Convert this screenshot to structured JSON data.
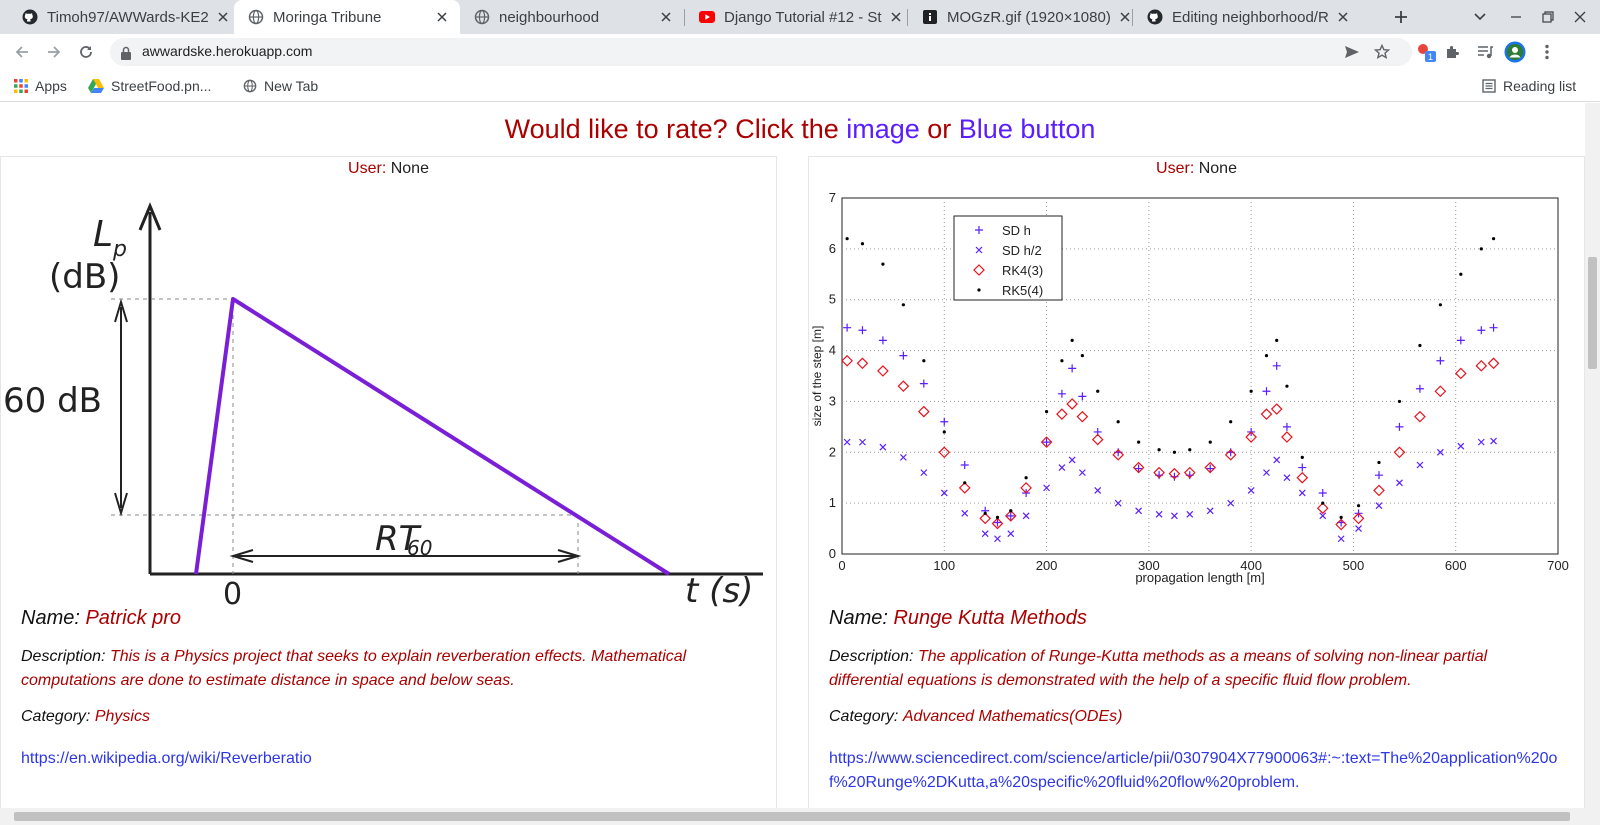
{
  "browser": {
    "tabs": [
      {
        "title": "Timoh97/AWWards-KE2",
        "icon": "github-icon"
      },
      {
        "title": "Moringa Tribune",
        "icon": "globe-icon",
        "active": true
      },
      {
        "title": "neighbourhood",
        "icon": "globe-icon"
      },
      {
        "title": "Django Tutorial #12 - St",
        "icon": "youtube-icon"
      },
      {
        "title": "MOGzR.gif (1920×1080)",
        "icon": "info-icon"
      },
      {
        "title": "Editing neighborhood/R",
        "icon": "github-icon"
      }
    ],
    "url": "awwardske.herokuapp.com",
    "extension_badge": "1",
    "bookmarks": [
      {
        "label": "Apps",
        "icon": "apps-grid-icon"
      },
      {
        "label": "StreetFood.pn...",
        "icon": "google-drive-icon"
      },
      {
        "label": "New Tab",
        "icon": "globe-icon"
      }
    ],
    "reading_list_label": "Reading list"
  },
  "page": {
    "headline": {
      "text_before": "Would like to rate? Click the ",
      "link_image": "image",
      "text_mid": " or ",
      "link_button": "Blue button"
    },
    "user_label": "User:",
    "name_label": "Name:",
    "description_label": "Description:",
    "category_label": "Category:",
    "projects": [
      {
        "user": "None",
        "name": "Patrick pro",
        "description": "This is a Physics project that seeks to explain reverberation effects. Mathematical computations are done to estimate distance in space and below seas.",
        "category": "Physics",
        "link": "https://en.wikipedia.org/wiki/Reverberatio",
        "image_text": {
          "ylabel_top": "L",
          "ylabel_sub": "p",
          "ylabel_unit": "(dB)",
          "level": "60 dB",
          "origin": "0",
          "rt_label": "RT",
          "rt_sub": "60",
          "x_label": "t (s)"
        }
      },
      {
        "user": "None",
        "name": "Runge Kutta Methods",
        "description": "The application of Runge-Kutta methods as a means of solving non-linear partial differential equations is demonstrated with the help of a specific fluid flow problem.",
        "category": "Advanced Mathematics(ODEs)",
        "link": "https://www.sciencedirect.com/science/article/pii/0307904X77900063#:~:text=The%20application%20of%20Runge%2DKutta,a%20specific%20fluid%20flow%20problem."
      }
    ]
  },
  "chart_data": {
    "type": "scatter",
    "xlabel": "propagation length [m]",
    "ylabel": "size of the step [m]",
    "xlim": [
      0,
      700
    ],
    "ylim": [
      0,
      7
    ],
    "xticks": [
      "0",
      "100",
      "200",
      "300",
      "400",
      "500",
      "600",
      "700"
    ],
    "yticks": [
      "0",
      "1",
      "2",
      "3",
      "4",
      "5",
      "6",
      "7"
    ],
    "grid": true,
    "legend_position": "top-left",
    "series": [
      {
        "name": "SD h",
        "marker": "plus",
        "color": "#5a1eff",
        "x": [
          5,
          20,
          40,
          60,
          80,
          100,
          120,
          140,
          152,
          165,
          180,
          200,
          215,
          225,
          235,
          250,
          270,
          290,
          310,
          325,
          340,
          360,
          380,
          400,
          415,
          425,
          435,
          450,
          470,
          488,
          505,
          525,
          545,
          565,
          585,
          605,
          625,
          637
        ],
        "y": [
          4.45,
          4.4,
          4.2,
          3.9,
          3.35,
          2.6,
          1.75,
          0.85,
          0.62,
          0.75,
          1.2,
          2.2,
          3.15,
          3.65,
          3.1,
          2.4,
          2.0,
          1.68,
          1.55,
          1.52,
          1.55,
          1.68,
          2.0,
          2.4,
          3.2,
          3.7,
          2.5,
          1.7,
          1.2,
          0.62,
          0.8,
          1.55,
          2.5,
          3.25,
          3.8,
          4.2,
          4.4,
          4.45
        ]
      },
      {
        "name": "SD h/2",
        "marker": "x",
        "color": "#5a1eff",
        "x": [
          5,
          20,
          40,
          60,
          80,
          100,
          120,
          140,
          152,
          165,
          180,
          200,
          215,
          225,
          235,
          250,
          270,
          290,
          310,
          325,
          340,
          360,
          380,
          400,
          415,
          425,
          435,
          450,
          470,
          488,
          505,
          525,
          545,
          565,
          585,
          605,
          625,
          637
        ],
        "y": [
          2.2,
          2.2,
          2.1,
          1.9,
          1.6,
          1.2,
          0.8,
          0.4,
          0.3,
          0.4,
          0.75,
          1.3,
          1.7,
          1.85,
          1.6,
          1.25,
          1.0,
          0.85,
          0.78,
          0.75,
          0.78,
          0.85,
          1.0,
          1.25,
          1.6,
          1.85,
          1.5,
          1.2,
          0.75,
          0.3,
          0.5,
          0.95,
          1.4,
          1.75,
          2.0,
          2.12,
          2.2,
          2.22
        ]
      },
      {
        "name": "RK4(3)",
        "marker": "diamond",
        "color": "#e8141e",
        "x": [
          5,
          20,
          40,
          60,
          80,
          100,
          120,
          140,
          152,
          165,
          180,
          200,
          215,
          225,
          235,
          250,
          270,
          290,
          310,
          325,
          340,
          360,
          380,
          400,
          415,
          425,
          435,
          450,
          470,
          488,
          505,
          525,
          545,
          565,
          585,
          605,
          625,
          637
        ],
        "y": [
          3.8,
          3.75,
          3.6,
          3.3,
          2.8,
          2.0,
          1.3,
          0.7,
          0.6,
          0.75,
          1.3,
          2.2,
          2.75,
          2.95,
          2.7,
          2.25,
          1.95,
          1.7,
          1.6,
          1.58,
          1.6,
          1.7,
          1.95,
          2.3,
          2.75,
          2.85,
          2.3,
          1.5,
          0.9,
          0.58,
          0.7,
          1.25,
          2.0,
          2.7,
          3.2,
          3.55,
          3.7,
          3.75
        ]
      },
      {
        "name": "RK5(4)",
        "marker": "dot",
        "color": "#000000",
        "x": [
          5,
          20,
          40,
          60,
          80,
          100,
          120,
          140,
          152,
          165,
          180,
          200,
          215,
          225,
          235,
          250,
          270,
          290,
          310,
          325,
          340,
          360,
          380,
          400,
          415,
          425,
          435,
          450,
          470,
          488,
          505,
          525,
          545,
          565,
          585,
          605,
          625,
          637
        ],
        "y": [
          6.2,
          6.1,
          5.7,
          4.9,
          3.8,
          2.4,
          1.4,
          0.8,
          0.72,
          0.85,
          1.5,
          2.8,
          3.8,
          4.2,
          3.9,
          3.2,
          2.6,
          2.2,
          2.05,
          2.0,
          2.05,
          2.2,
          2.6,
          3.2,
          3.9,
          4.2,
          3.3,
          1.9,
          1.0,
          0.72,
          0.95,
          1.8,
          3.0,
          4.1,
          4.9,
          5.5,
          6.0,
          6.2
        ]
      }
    ]
  }
}
